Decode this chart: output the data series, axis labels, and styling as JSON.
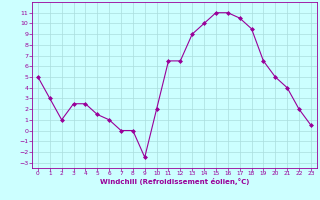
{
  "x": [
    0,
    1,
    2,
    3,
    4,
    5,
    6,
    7,
    8,
    9,
    10,
    11,
    12,
    13,
    14,
    15,
    16,
    17,
    18,
    19,
    20,
    21,
    22,
    23
  ],
  "y": [
    5,
    3,
    1,
    2.5,
    2.5,
    1.5,
    1,
    0,
    0,
    -2.5,
    2,
    6.5,
    6.5,
    9,
    10,
    11,
    11,
    10.5,
    9.5,
    6.5,
    5,
    4,
    2,
    0.5
  ],
  "line_color": "#990099",
  "marker": "D",
  "marker_size": 2,
  "bg_color": "#ccffff",
  "grid_color": "#aadddd",
  "xlabel": "Windchill (Refroidissement éolien,°C)",
  "xlabel_color": "#990099",
  "tick_color": "#990099",
  "ylim": [
    -3.5,
    12
  ],
  "xlim": [
    -0.5,
    23.5
  ],
  "yticks": [
    -3,
    -2,
    -1,
    0,
    1,
    2,
    3,
    4,
    5,
    6,
    7,
    8,
    9,
    10,
    11
  ],
  "xticks": [
    0,
    1,
    2,
    3,
    4,
    5,
    6,
    7,
    8,
    9,
    10,
    11,
    12,
    13,
    14,
    15,
    16,
    17,
    18,
    19,
    20,
    21,
    22,
    23
  ]
}
